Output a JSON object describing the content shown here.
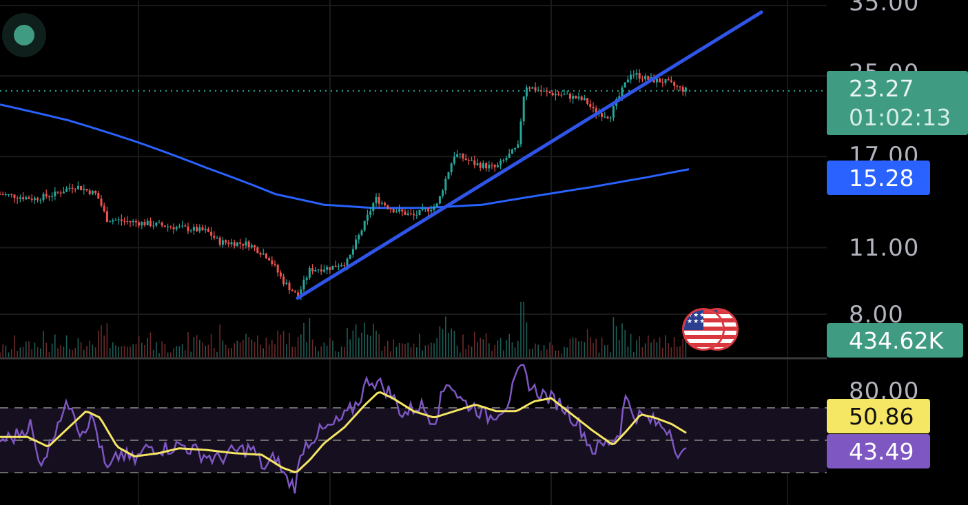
{
  "price_axis": {
    "labels": [
      "35.00",
      "25.00",
      "17.00",
      "11.00",
      "8.00"
    ]
  },
  "rsi_axis": {
    "labels": [
      "80.00"
    ]
  },
  "badges": {
    "last_price": "23.27",
    "countdown": "01:02:13",
    "ma_value": "15.28",
    "volume": "434.62K",
    "rsi_ma_value": "50.86",
    "rsi_value": "43.49"
  },
  "icons": {
    "live": "live-status-dot-icon",
    "flag": "us-flag-icon"
  },
  "colors": {
    "up": "#26a69a",
    "down": "#ef5350",
    "ma_line": "#2962ff",
    "trendline": "#2f55e8",
    "rsi_line": "#7e57c2",
    "rsi_ma_line": "#f5e663",
    "last_price_badge": "#3f9b82",
    "rsi_band": "#150f20"
  },
  "chart_data": [
    {
      "type": "candlestick",
      "scale": "log",
      "ylim": [
        7.8,
        36
      ],
      "price_levels": [
        35,
        25,
        17,
        11,
        8
      ],
      "last_price": 23.27,
      "anchors": [
        [
          0,
          14.2
        ],
        [
          50,
          13.9
        ],
        [
          80,
          14.2
        ],
        [
          108,
          14.8
        ],
        [
          140,
          14.2
        ],
        [
          155,
          12.6
        ],
        [
          200,
          12.4
        ],
        [
          240,
          12.2
        ],
        [
          300,
          11.9
        ],
        [
          318,
          11.3
        ],
        [
          360,
          11.2
        ],
        [
          390,
          10.5
        ],
        [
          410,
          9.4
        ],
        [
          432,
          8.7
        ],
        [
          450,
          9.9
        ],
        [
          480,
          10.0
        ],
        [
          505,
          10.3
        ],
        [
          530,
          12.4
        ],
        [
          545,
          13.9
        ],
        [
          570,
          13.2
        ],
        [
          600,
          12.8
        ],
        [
          635,
          13.5
        ],
        [
          660,
          17.2
        ],
        [
          690,
          16.4
        ],
        [
          720,
          16.1
        ],
        [
          752,
          17.8
        ],
        [
          762,
          23.9
        ],
        [
          790,
          23.1
        ],
        [
          820,
          22.8
        ],
        [
          850,
          22.2
        ],
        [
          862,
          21.1
        ],
        [
          885,
          20.6
        ],
        [
          905,
          23.6
        ],
        [
          915,
          25.4
        ],
        [
          940,
          24.6
        ],
        [
          965,
          24.3
        ],
        [
          985,
          23.6
        ],
        [
          998,
          23.3
        ]
      ],
      "moving_average": {
        "value": 15.28,
        "points": [
          [
            0,
            21.8
          ],
          [
            100,
            20.2
          ],
          [
            200,
            18.2
          ],
          [
            300,
            16.1
          ],
          [
            400,
            14.2
          ],
          [
            470,
            13.5
          ],
          [
            540,
            13.3
          ],
          [
            620,
            13.3
          ],
          [
            700,
            13.5
          ],
          [
            780,
            14.1
          ],
          [
            860,
            14.7
          ],
          [
            940,
            15.4
          ],
          [
            1000,
            16.0
          ]
        ]
      },
      "trendline": [
        [
          432,
          8.64
        ],
        [
          1105,
          33.9
        ]
      ],
      "volume_last": "434.62K"
    },
    {
      "type": "line",
      "ylim": [
        0,
        100
      ],
      "bands": [
        70,
        50,
        30
      ],
      "series": [
        {
          "name": "RSI",
          "value": 43.49,
          "points": [
            [
              0,
              50
            ],
            [
              20,
              52
            ],
            [
              45,
              60
            ],
            [
              55,
              36
            ],
            [
              70,
              44
            ],
            [
              85,
              64
            ],
            [
              105,
              74
            ],
            [
              115,
              55
            ],
            [
              135,
              64
            ],
            [
              155,
              30
            ],
            [
              175,
              42
            ],
            [
              195,
              37
            ],
            [
              215,
              46
            ],
            [
              240,
              45
            ],
            [
              265,
              47
            ],
            [
              290,
              42
            ],
            [
              315,
              38
            ],
            [
              340,
              43
            ],
            [
              365,
              45
            ],
            [
              385,
              32
            ],
            [
              400,
              40
            ],
            [
              415,
              26
            ],
            [
              428,
              22
            ],
            [
              440,
              46
            ],
            [
              460,
              54
            ],
            [
              480,
              58
            ],
            [
              500,
              64
            ],
            [
              520,
              74
            ],
            [
              535,
              88
            ],
            [
              550,
              85
            ],
            [
              565,
              80
            ],
            [
              585,
              66
            ],
            [
              610,
              72
            ],
            [
              630,
              62
            ],
            [
              650,
              88
            ],
            [
              670,
              74
            ],
            [
              690,
              70
            ],
            [
              710,
              64
            ],
            [
              735,
              72
            ],
            [
              757,
              95
            ],
            [
              772,
              82
            ],
            [
              790,
              78
            ],
            [
              815,
              72
            ],
            [
              840,
              60
            ],
            [
              860,
              44
            ],
            [
              880,
              48
            ],
            [
              900,
              54
            ],
            [
              905,
              78
            ],
            [
              920,
              66
            ],
            [
              935,
              64
            ],
            [
              955,
              60
            ],
            [
              975,
              56
            ],
            [
              985,
              38
            ],
            [
              998,
              43
            ]
          ]
        },
        {
          "name": "RSI MA",
          "value": 50.86,
          "points": [
            [
              0,
              52
            ],
            [
              40,
              52
            ],
            [
              70,
              46
            ],
            [
              100,
              58
            ],
            [
              125,
              68
            ],
            [
              145,
              64
            ],
            [
              170,
              46
            ],
            [
              195,
              40
            ],
            [
              230,
              42
            ],
            [
              260,
              45
            ],
            [
              300,
              44
            ],
            [
              340,
              42
            ],
            [
              380,
              41
            ],
            [
              410,
              33
            ],
            [
              430,
              30
            ],
            [
              450,
              38
            ],
            [
              470,
              48
            ],
            [
              500,
              58
            ],
            [
              530,
              72
            ],
            [
              550,
              80
            ],
            [
              570,
              76
            ],
            [
              600,
              68
            ],
            [
              630,
              64
            ],
            [
              660,
              68
            ],
            [
              690,
              72
            ],
            [
              720,
              68
            ],
            [
              750,
              68
            ],
            [
              775,
              74
            ],
            [
              800,
              76
            ],
            [
              830,
              66
            ],
            [
              860,
              56
            ],
            [
              890,
              47
            ],
            [
              910,
              56
            ],
            [
              930,
              66
            ],
            [
              950,
              64
            ],
            [
              975,
              60
            ],
            [
              998,
              54
            ]
          ]
        }
      ]
    }
  ]
}
